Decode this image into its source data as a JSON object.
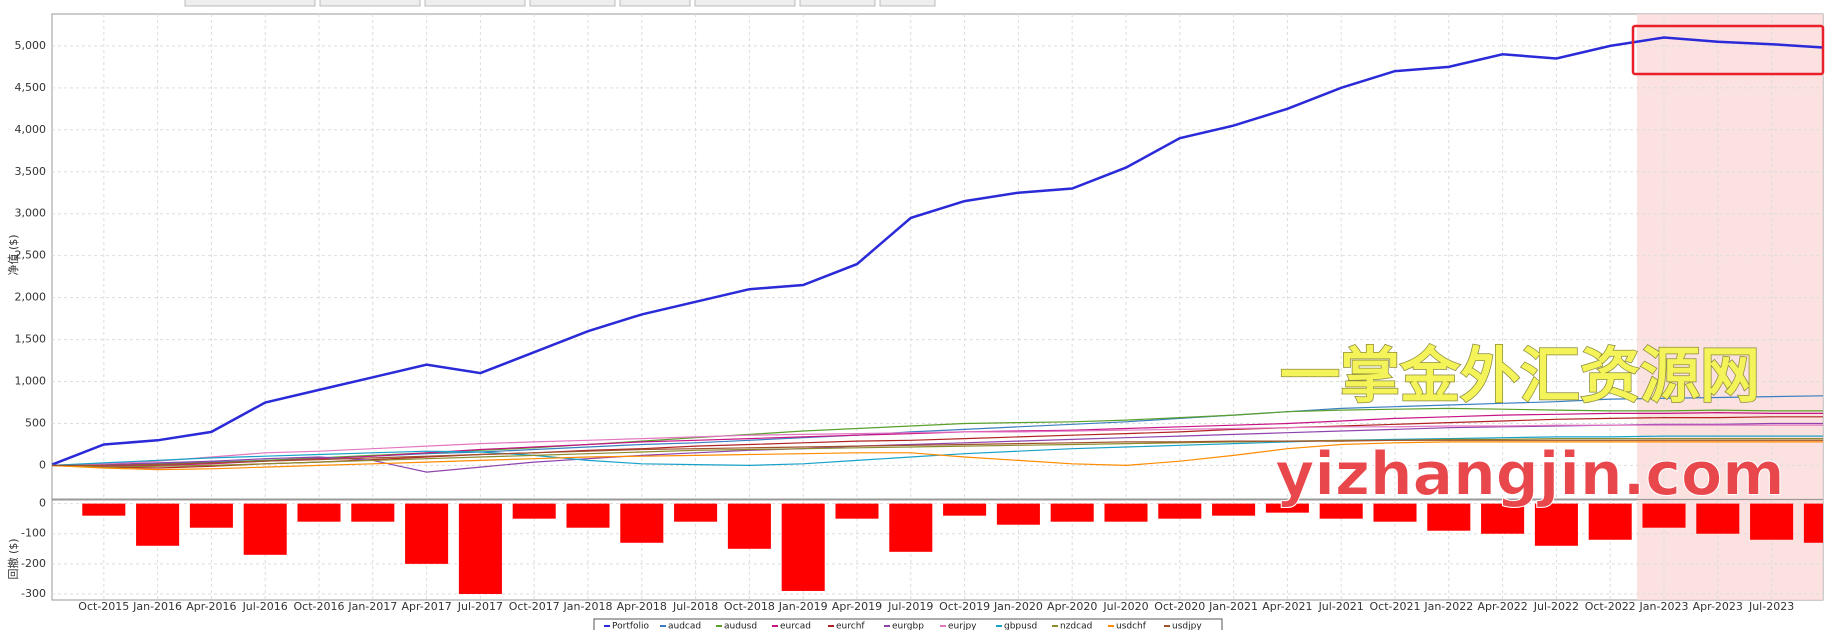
{
  "chart_data": [
    {
      "type": "line",
      "ylabel": "净值 ($)",
      "legend": "bottom",
      "grid": true,
      "ylim": [
        -400,
        5380
      ],
      "yticks": [
        0,
        500,
        {
          "value": 1000,
          "label": "1,000"
        },
        {
          "value": 1500,
          "label": "1,500"
        },
        {
          "value": 2000,
          "label": "2,000"
        },
        {
          "value": 2500,
          "label": "2,500"
        },
        {
          "value": 3000,
          "label": "3,000"
        },
        {
          "value": 3500,
          "label": "3,500"
        },
        {
          "value": 4000,
          "label": "4,000"
        },
        {
          "value": 4500,
          "label": "4,500"
        },
        {
          "value": 5000,
          "label": "5,000"
        }
      ],
      "series": [
        {
          "name": "Portfolio",
          "color": "#2a2ad8",
          "values": [
            0,
            250,
            300,
            400,
            750,
            900,
            1050,
            1200,
            1100,
            1350,
            1600,
            1800,
            1950,
            2100,
            2150,
            2400,
            2950,
            3150,
            3250,
            3300,
            3550,
            3900,
            4050,
            4250,
            4500,
            4700,
            4750,
            4900,
            4850,
            5000,
            5100,
            5050,
            5020,
            4980
          ]
        },
        {
          "name": "audcad",
          "color": "#3a7fc1",
          "values": [
            0,
            10,
            20,
            40,
            60,
            80,
            110,
            140,
            160,
            190,
            220,
            250,
            270,
            300,
            330,
            360,
            400,
            430,
            460,
            490,
            520,
            560,
            600,
            640,
            680,
            700,
            720,
            740,
            760,
            790,
            800,
            810,
            820,
            830
          ]
        },
        {
          "name": "audusd",
          "color": "#5aa02c",
          "values": [
            0,
            5,
            15,
            30,
            60,
            90,
            120,
            150,
            180,
            210,
            250,
            290,
            330,
            370,
            410,
            440,
            470,
            500,
            510,
            520,
            540,
            570,
            600,
            640,
            660,
            670,
            680,
            670,
            660,
            650,
            650,
            660,
            650,
            650
          ]
        },
        {
          "name": "eurcad",
          "color": "#c71585",
          "values": [
            0,
            -10,
            0,
            20,
            50,
            80,
            110,
            150,
            190,
            220,
            250,
            280,
            300,
            320,
            340,
            360,
            380,
            400,
            410,
            420,
            440,
            460,
            480,
            500,
            530,
            560,
            580,
            600,
            610,
            620,
            620,
            630,
            620,
            620
          ]
        },
        {
          "name": "eurchf",
          "color": "#b22222",
          "values": [
            0,
            -20,
            -30,
            -10,
            20,
            40,
            70,
            100,
            130,
            150,
            180,
            200,
            230,
            250,
            270,
            290,
            300,
            320,
            340,
            360,
            380,
            400,
            430,
            450,
            470,
            490,
            510,
            530,
            550,
            560,
            570,
            570,
            580,
            580
          ]
        },
        {
          "name": "eurgbp",
          "color": "#8e44ad",
          "values": [
            0,
            10,
            30,
            50,
            80,
            100,
            60,
            -80,
            -20,
            40,
            80,
            120,
            150,
            180,
            200,
            230,
            250,
            270,
            290,
            310,
            330,
            350,
            370,
            390,
            410,
            430,
            450,
            460,
            470,
            480,
            490,
            490,
            500,
            500
          ]
        },
        {
          "name": "eurjpy",
          "color": "#e377c2",
          "values": [
            0,
            20,
            50,
            100,
            150,
            170,
            200,
            230,
            260,
            280,
            300,
            320,
            340,
            360,
            370,
            380,
            390,
            400,
            400,
            410,
            420,
            430,
            440,
            450,
            460,
            460,
            470,
            470,
            480,
            480,
            480,
            480,
            480,
            480
          ]
        },
        {
          "name": "gbpusd",
          "color": "#17a2c8",
          "values": [
            0,
            30,
            60,
            90,
            110,
            130,
            150,
            170,
            160,
            120,
            60,
            20,
            10,
            0,
            20,
            60,
            100,
            140,
            170,
            200,
            220,
            240,
            260,
            280,
            300,
            310,
            320,
            330,
            340,
            340,
            350,
            350,
            350,
            350
          ]
        },
        {
          "name": "nzdcad",
          "color": "#8c8c2c",
          "values": [
            0,
            -20,
            -10,
            0,
            20,
            40,
            60,
            80,
            100,
            120,
            140,
            160,
            180,
            190,
            200,
            210,
            220,
            230,
            240,
            250,
            260,
            270,
            280,
            290,
            300,
            300,
            310,
            310,
            320,
            320,
            320,
            320,
            320,
            320
          ]
        },
        {
          "name": "usdchf",
          "color": "#ff8c00",
          "values": [
            0,
            -30,
            -50,
            -40,
            -20,
            0,
            20,
            40,
            60,
            80,
            100,
            110,
            120,
            130,
            140,
            150,
            150,
            100,
            60,
            20,
            0,
            50,
            120,
            200,
            250,
            270,
            280,
            280,
            280,
            280,
            280,
            280,
            280,
            280
          ]
        },
        {
          "name": "usdjpy",
          "color": "#a0522d",
          "values": [
            0,
            0,
            10,
            30,
            50,
            70,
            90,
            110,
            130,
            150,
            170,
            190,
            200,
            210,
            220,
            230,
            240,
            250,
            260,
            270,
            280,
            280,
            290,
            290,
            290,
            300,
            300,
            300,
            300,
            300,
            300,
            300,
            300,
            300
          ]
        }
      ]
    },
    {
      "type": "bar",
      "ylabel": "回撤 ($)",
      "color": "#ff0000",
      "grid": true,
      "ylim": [
        -320,
        12
      ],
      "yticks": [
        0,
        -100,
        -200,
        -300
      ],
      "categories": [
        null,
        "Oct-2015",
        "Jan-2016",
        "Apr-2016",
        "Jul-2016",
        "Oct-2016",
        "Jan-2017",
        "Apr-2017",
        "Jul-2017",
        "Oct-2017",
        "Jan-2018",
        "Apr-2018",
        "Jul-2018",
        "Oct-2018",
        "Jan-2019",
        "Apr-2019",
        "Jul-2019",
        "Oct-2019",
        "Jan-2020",
        "Apr-2020",
        "Jul-2020",
        "Oct-2020",
        "Jan-2021",
        "Apr-2021",
        "Jul-2021",
        "Oct-2021",
        "Jan-2022",
        "Apr-2022",
        "Jul-2022",
        "Oct-2022",
        "Jan-2023",
        "Apr-2023",
        "Jul-2023",
        null
      ],
      "values": [
        0,
        -40,
        -140,
        -80,
        -170,
        -60,
        -60,
        -200,
        -300,
        -50,
        -80,
        -130,
        -60,
        -150,
        -290,
        -50,
        -160,
        -40,
        -70,
        -60,
        -60,
        -50,
        -40,
        -30,
        -50,
        -60,
        -90,
        -100,
        -140,
        -120,
        -80,
        -100,
        -120,
        -130
      ]
    }
  ],
  "watermark": [
    "一掌金外汇资源网",
    "yizhangjin.com"
  ]
}
